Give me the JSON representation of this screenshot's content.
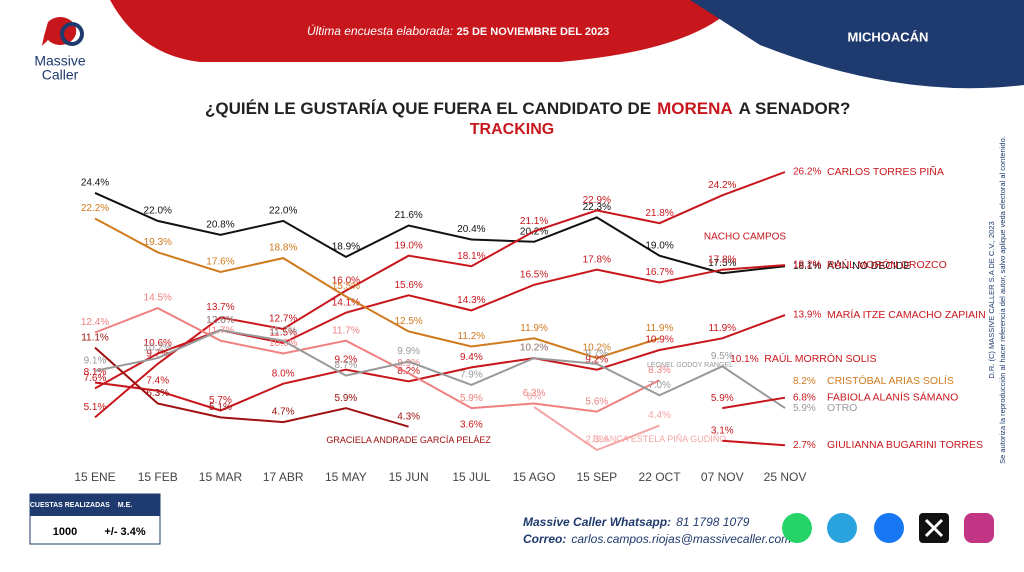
{
  "header": {
    "survey_label": "Última encuesta elaborada:",
    "survey_date": "25 DE NOVIEMBRE DEL 2023",
    "region": "MICHOACÁN",
    "logo_line1": "Massive",
    "logo_line2": "Caller"
  },
  "chart_data": {
    "type": "line",
    "title": "¿QUIÉN LE GUSTARÍA QUE FUERA EL CANDIDATO DE",
    "title_party": "MORENA",
    "title_end": "A SENADOR?",
    "subtitle": "TRACKING",
    "categories": [
      "15 ENE",
      "15 FEB",
      "15 MAR",
      "17 ABR",
      "15 MAY",
      "15 JUN",
      "15 JUL",
      "15 AGO",
      "15 SEP",
      "22 OCT",
      "07 NOV",
      "25 NOV"
    ],
    "series": [
      {
        "name": "AÚN NO DECIDE",
        "color": "#111111",
        "values": [
          24.4,
          22.0,
          20.8,
          22.0,
          18.9,
          21.6,
          20.4,
          20.2,
          22.3,
          19.0,
          17.5,
          18.1
        ],
        "value_labels": [
          "24.4%",
          "22.0%",
          "20.8%",
          "22.0%",
          "18.9%",
          "21.6%",
          "20.4%",
          "20.2%",
          "22.3%",
          "19.0%",
          "17.5%",
          "18.1%"
        ]
      },
      {
        "name": "CARLOS TORRES PIÑA",
        "color": "#c8161d",
        "values": [
          5.1,
          9.7,
          13.7,
          12.7,
          16.0,
          19.0,
          18.1,
          21.1,
          22.9,
          21.8,
          24.2,
          26.2
        ],
        "value_labels": [
          "5.1%",
          "9.7%",
          "13.7%",
          "12.7%",
          "16.0%",
          "19.0%",
          "18.1%",
          "21.1%",
          "22.9%",
          "21.8%",
          "24.2%",
          "26.2%"
        ]
      },
      {
        "name": "RAÚL MORÓN OROZCO",
        "color": "#c8161d",
        "values": [
          7.6,
          10.6,
          12.6,
          11.5,
          14.1,
          15.6,
          14.3,
          16.5,
          17.8,
          16.7,
          17.8,
          18.2
        ],
        "value_labels": [
          "7.6%",
          "10.6%",
          "12.6%",
          "11.5%",
          "14.1%",
          "15.6%",
          "14.3%",
          "16.5%",
          "17.8%",
          "16.7%",
          "17.8%",
          "18.2%"
        ]
      },
      {
        "color": "#d07a1e",
        "values": [
          22.2,
          19.3,
          17.6,
          18.8,
          15.5,
          12.5,
          11.2,
          11.9,
          10.2,
          11.9,
          null,
          null
        ],
        "value_labels": [
          "22.2%",
          "19.3%",
          "17.6%",
          "18.8%",
          "15.5%",
          "12.5%",
          "11.2%",
          "11.9%",
          "10.2%",
          "11.9%",
          null,
          null
        ]
      },
      {
        "name": "MARÍA ITZE CAMACHO ZAPIAIN",
        "color": "#c8161d",
        "values": [
          8.1,
          7.4,
          5.7,
          8.0,
          9.2,
          8.2,
          9.4,
          10.2,
          9.2,
          10.9,
          11.9,
          13.9
        ],
        "value_labels": [
          "8.1%",
          "7.4%",
          "5.7%",
          "8.0%",
          "9.2%",
          "8.2%",
          "9.4%",
          "10.2%",
          "9.2%",
          "10.9%",
          "11.9%",
          "13.9%"
        ]
      },
      {
        "name": "GRACIELA ANDRADE GARCÍA PELÁEZ",
        "color": "#a01010",
        "values": [
          11.1,
          6.3,
          5.1,
          4.7,
          5.9,
          4.3,
          null,
          null,
          null,
          null,
          null,
          null
        ],
        "value_labels": [
          "11.1%",
          "6.3%",
          "5.1%",
          "4.7%",
          "5.9%",
          "4.3%",
          null,
          null,
          null,
          null,
          null,
          null
        ]
      },
      {
        "color": "#f08080",
        "values": [
          12.4,
          14.5,
          11.7,
          10.6,
          11.7,
          8.9,
          5.9,
          6.3,
          5.6,
          8.3,
          null,
          null
        ],
        "value_labels": [
          "12.4%",
          "14.5%",
          "11.7%",
          "10.6%",
          "11.7%",
          "8.9%",
          "5.9%",
          "6.3%",
          "5.6%",
          "8.3%",
          null,
          null
        ]
      },
      {
        "name": "OTRO",
        "color": "#999999",
        "values": [
          9.1,
          10.2,
          12.6,
          11.7,
          8.7,
          9.9,
          7.9,
          10.2,
          9.7,
          7.0,
          9.5,
          5.9
        ],
        "value_labels": [
          "9.1%",
          "10.2%",
          "12.6%",
          "11.7%",
          "8.7%",
          "9.9%",
          "7.9%",
          "10.2%",
          "9.7%",
          "7.0%",
          "9.5%",
          "5.9%"
        ]
      },
      {
        "name": "BLANCA ESTELA PIÑA GUDIÑO",
        "color": "#f4a6a6",
        "values": [
          null,
          null,
          null,
          null,
          null,
          null,
          null,
          6,
          2.3,
          4.4,
          null,
          null
        ],
        "value_labels": [
          null,
          null,
          null,
          null,
          null,
          null,
          null,
          "6%",
          "2.3%",
          "4.4%",
          null,
          null
        ]
      },
      {
        "name": "GIULIANNA BUGARINI TORRES",
        "color": "#c8161d",
        "values": [
          null,
          null,
          null,
          null,
          null,
          null,
          3.6,
          null,
          null,
          null,
          3.1,
          2.7
        ],
        "value_labels": [
          null,
          null,
          null,
          null,
          null,
          null,
          "3.6%",
          null,
          null,
          null,
          "3.1%",
          "2.7%"
        ]
      },
      {
        "name": "FABIOLA ALANÍS SÁMANO",
        "color": "#c8161d",
        "values": [
          null,
          null,
          null,
          null,
          null,
          null,
          null,
          null,
          null,
          null,
          5.9,
          6.8
        ],
        "value_labels": [
          null,
          null,
          null,
          null,
          null,
          null,
          null,
          null,
          null,
          null,
          "5.9%",
          "6.8%"
        ]
      },
      {
        "name": "CRISTÓBAL ARIAS SOLÍS",
        "color": "#d07a1e",
        "values": [
          null,
          null,
          null,
          null,
          null,
          null,
          null,
          null,
          null,
          null,
          null,
          8.2
        ],
        "value_labels": [
          null,
          null,
          null,
          null,
          null,
          null,
          null,
          null,
          null,
          null,
          null,
          "8.2%"
        ]
      },
      {
        "name": "RAÚL MORRÓN SOLIS",
        "color": "#c8161d",
        "values": [
          null,
          null,
          null,
          null,
          null,
          null,
          null,
          null,
          null,
          null,
          10.1,
          null
        ],
        "value_labels": [
          null,
          null,
          null,
          null,
          null,
          null,
          null,
          null,
          null,
          null,
          "10.1%",
          null
        ]
      }
    ],
    "annotations": [
      "NACHO CAMPOS",
      "LEONEL GODOY RANGEL"
    ]
  },
  "footer": {
    "table_head1": "ENCUESTAS REALIZADAS",
    "table_head2": "M.E.",
    "surveys": "1000",
    "margin": "+/- 3.4%",
    "whatsapp_label": "Massive Caller Whatsapp:",
    "whatsapp": "81 1798 1079",
    "email_label": "Correo:",
    "email": "carlos.campos.riojas@massivecaller.com",
    "copyright": "D.R. (C) MASSIVE CALLER S.A DE C.V., 2023",
    "notice": "Se autoriza la reproducción al hacer referencia del autor, salvo aplique veda electoral al contenido."
  }
}
